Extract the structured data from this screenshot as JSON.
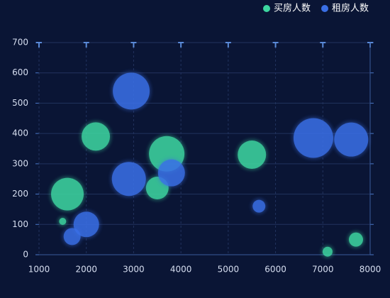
{
  "chart_data": {
    "type": "scatter",
    "xlim": [
      1000,
      8000
    ],
    "xticks": [
      1000,
      2000,
      3000,
      4000,
      5000,
      6000,
      7000,
      8000
    ],
    "ylim": [
      0,
      700
    ],
    "yticks": [
      0,
      100,
      200,
      300,
      400,
      500,
      600,
      700
    ],
    "grid": true,
    "legend": "top-right",
    "series": [
      {
        "name": "买房人数",
        "color": "#3dd6a0",
        "x": [
          1600,
          2200,
          1500,
          3700,
          3500,
          5500,
          7100,
          7700
        ],
        "values": [
          200,
          390,
          110,
          333,
          220,
          330,
          10,
          50
        ],
        "sizes": [
          23,
          20,
          5,
          25,
          16,
          20,
          7,
          10
        ]
      },
      {
        "name": "租房人数",
        "color": "#3a6fe6",
        "x": [
          2950,
          2900,
          3800,
          2000,
          1700,
          5650,
          6800,
          7600
        ],
        "values": [
          540,
          250,
          270,
          100,
          60,
          160,
          385,
          380
        ],
        "sizes": [
          26,
          24,
          19,
          18,
          12,
          9,
          28,
          24
        ]
      }
    ]
  }
}
